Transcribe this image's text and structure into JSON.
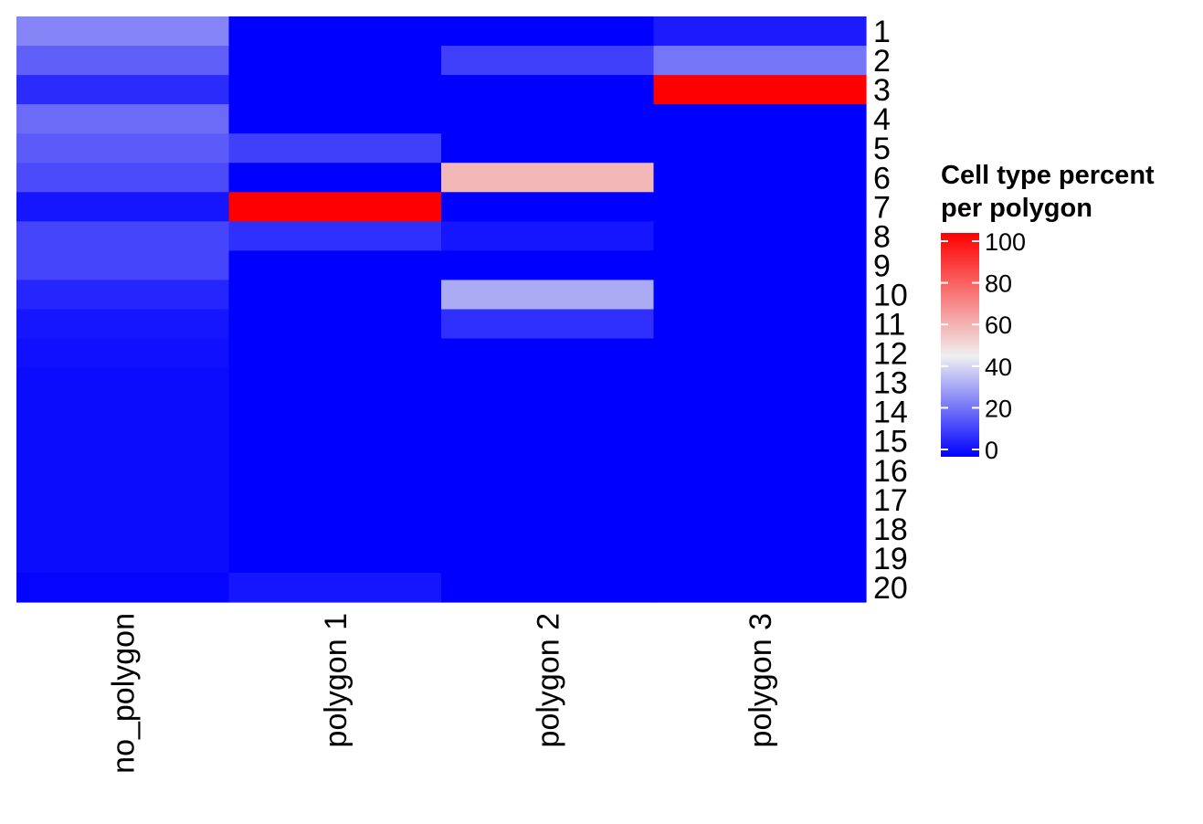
{
  "chart_data": {
    "type": "heatmap",
    "title": "",
    "xlabel": "",
    "ylabel": "",
    "columns": [
      "no_polygon",
      "polygon 1",
      "polygon 2",
      "polygon 3"
    ],
    "rows": [
      "1",
      "2",
      "3",
      "4",
      "5",
      "6",
      "7",
      "8",
      "9",
      "10",
      "11",
      "12",
      "13",
      "14",
      "15",
      "16",
      "17",
      "18",
      "19",
      "20"
    ],
    "values": [
      [
        25,
        0,
        0,
        5
      ],
      [
        18,
        0,
        12,
        22
      ],
      [
        8,
        0,
        0,
        100
      ],
      [
        20,
        0,
        0,
        0
      ],
      [
        17,
        12,
        0,
        0
      ],
      [
        14,
        0,
        58,
        0
      ],
      [
        4,
        100,
        0,
        0
      ],
      [
        13,
        9,
        4,
        0
      ],
      [
        13,
        0,
        0,
        0
      ],
      [
        7,
        0,
        32,
        0
      ],
      [
        4,
        0,
        9,
        0
      ],
      [
        3,
        0,
        0,
        0
      ],
      [
        2,
        0,
        0,
        0
      ],
      [
        2,
        0,
        0,
        0
      ],
      [
        2,
        0,
        0,
        0
      ],
      [
        2,
        0,
        0,
        0
      ],
      [
        2,
        0,
        0,
        0
      ],
      [
        2,
        0,
        0,
        0
      ],
      [
        2,
        0,
        0,
        0
      ],
      [
        1,
        4,
        0,
        0
      ]
    ],
    "legend": {
      "title_lines": [
        "Cell type percent",
        "per polygon"
      ],
      "ticks": [
        0,
        20,
        40,
        60,
        80,
        100
      ],
      "range": [
        0,
        100
      ],
      "placement": "right"
    },
    "colors": {
      "low": "#0000ff",
      "mid": "#f0f0f0",
      "high": "#ff0000",
      "mid_value": 45
    }
  }
}
